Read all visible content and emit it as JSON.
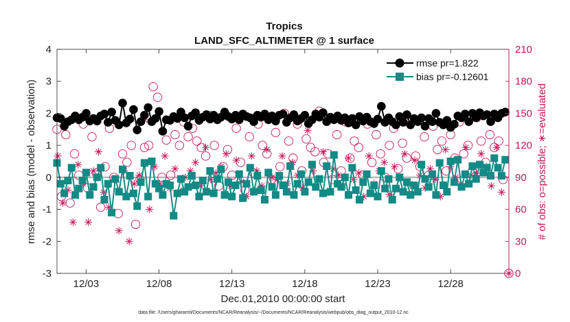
{
  "chart_data": {
    "type": "line",
    "title": "Tropics",
    "subtitle": "LAND_SFC_ALTIMETER @ 1 surface",
    "xlabel": "Dec.01,2010 00:00:00 start",
    "ylabel": "rmse and bias (model - observation)",
    "y2label": "# of obs: o=possible; ∗=evaluated",
    "xlim": [
      1.0,
      32.0
    ],
    "ylim": [
      -3,
      4
    ],
    "y2lim": [
      0,
      210
    ],
    "x_ticks": [
      3,
      8,
      13,
      18,
      23,
      28
    ],
    "x_tick_labels": [
      "12/03",
      "12/08",
      "12/13",
      "12/18",
      "12/23",
      "12/28"
    ],
    "y_ticks": [
      "-3",
      "-2",
      "-1",
      "0",
      "1",
      "2",
      "3",
      "4"
    ],
    "y2_ticks": [
      "0",
      "30",
      "60",
      "90",
      "120",
      "150",
      "180",
      "210"
    ],
    "legend_position": "top-right",
    "zero_line": 0,
    "series": [
      {
        "name": "rmse pr=1.822",
        "color": "#000000",
        "marker": "circle",
        "axis": "left",
        "x": [
          1.0,
          1.25,
          1.5,
          1.75,
          2.0,
          2.25,
          2.5,
          2.75,
          3.0,
          3.25,
          3.5,
          3.75,
          4.0,
          4.25,
          4.5,
          4.75,
          5.0,
          5.25,
          5.5,
          5.75,
          6.0,
          6.25,
          6.5,
          6.75,
          7.0,
          7.25,
          7.5,
          7.75,
          8.0,
          8.25,
          8.5,
          8.75,
          9.0,
          9.25,
          9.5,
          9.75,
          10.0,
          10.25,
          10.5,
          10.75,
          11.0,
          11.25,
          11.5,
          11.75,
          12.0,
          12.25,
          12.5,
          12.75,
          13.0,
          13.25,
          13.5,
          13.75,
          14.0,
          14.25,
          14.5,
          14.75,
          15.0,
          15.25,
          15.5,
          15.75,
          16.0,
          16.25,
          16.5,
          16.75,
          17.0,
          17.25,
          17.5,
          17.75,
          18.0,
          18.25,
          18.5,
          18.75,
          19.0,
          19.25,
          19.5,
          19.75,
          20.0,
          20.25,
          20.5,
          20.75,
          21.0,
          21.25,
          21.5,
          21.75,
          22.0,
          22.25,
          22.5,
          22.75,
          23.0,
          23.25,
          23.5,
          23.75,
          24.0,
          24.25,
          24.5,
          24.75,
          25.0,
          25.25,
          25.5,
          25.75,
          26.0,
          26.25,
          26.5,
          26.75,
          27.0,
          27.25,
          27.5,
          27.75,
          28.0,
          28.25,
          28.5,
          28.75,
          29.0,
          29.25,
          29.5,
          29.75,
          30.0,
          30.25,
          30.5,
          30.75,
          31.0,
          31.25,
          31.5,
          31.75
        ],
        "values": [
          1.86,
          1.84,
          1.6,
          1.74,
          1.8,
          1.92,
          1.8,
          1.88,
          2.0,
          1.76,
          1.84,
          1.76,
          1.92,
          1.98,
          1.72,
          2.04,
          1.78,
          1.64,
          2.32,
          1.7,
          1.82,
          2.12,
          1.48,
          1.74,
          1.94,
          2.18,
          1.74,
          1.84,
          2.06,
          1.44,
          1.8,
          1.78,
          1.9,
          1.84,
          2.04,
          1.86,
          1.6,
          1.92,
          2.02,
          1.78,
          1.88,
          1.96,
          1.82,
          1.94,
          1.8,
          1.88,
          2.04,
          1.9,
          1.82,
          1.94,
          1.8,
          1.98,
          1.9,
          1.86,
          1.74,
          1.94,
          1.88,
          1.98,
          1.8,
          1.92,
          1.76,
          1.94,
          1.98,
          1.72,
          1.86,
          1.96,
          1.76,
          1.84,
          1.94,
          1.68,
          1.8,
          1.98,
          1.88,
          2.02,
          1.74,
          1.88,
          1.8,
          1.92,
          1.78,
          1.86,
          1.7,
          1.84,
          1.64,
          1.9,
          1.76,
          1.88,
          1.74,
          1.68,
          1.82,
          2.22,
          1.72,
          1.86,
          1.74,
          1.64,
          1.9,
          1.72,
          1.96,
          1.64,
          1.84,
          1.74,
          1.86,
          1.6,
          1.84,
          1.74,
          2.0,
          1.72,
          1.64,
          1.78,
          1.56,
          1.66,
          1.92,
          1.86,
          1.98,
          1.74,
          2.0,
          1.86,
          2.02,
          1.92,
          1.96,
          1.74,
          1.98,
          1.86,
          2.0,
          2.04
        ]
      },
      {
        "name": "bias pr=-0.12601",
        "color": "#128a86",
        "marker": "square",
        "axis": "left",
        "x": [
          1.0,
          1.25,
          1.5,
          1.75,
          2.0,
          2.25,
          2.5,
          2.75,
          3.0,
          3.25,
          3.5,
          3.75,
          4.0,
          4.25,
          4.5,
          4.75,
          5.0,
          5.25,
          5.5,
          5.75,
          6.0,
          6.25,
          6.5,
          6.75,
          7.0,
          7.25,
          7.5,
          7.75,
          8.0,
          8.25,
          8.5,
          8.75,
          9.0,
          9.25,
          9.5,
          9.75,
          10.0,
          10.25,
          10.5,
          10.75,
          11.0,
          11.25,
          11.5,
          11.75,
          12.0,
          12.25,
          12.5,
          12.75,
          13.0,
          13.25,
          13.5,
          13.75,
          14.0,
          14.25,
          14.5,
          14.75,
          15.0,
          15.25,
          15.5,
          15.75,
          16.0,
          16.25,
          16.5,
          16.75,
          17.0,
          17.25,
          17.5,
          17.75,
          18.0,
          18.25,
          18.5,
          18.75,
          19.0,
          19.25,
          19.5,
          19.75,
          20.0,
          20.25,
          20.5,
          20.75,
          21.0,
          21.25,
          21.5,
          21.75,
          22.0,
          22.25,
          22.5,
          22.75,
          23.0,
          23.25,
          23.5,
          23.75,
          24.0,
          24.25,
          24.5,
          24.75,
          25.0,
          25.25,
          25.5,
          25.75,
          26.0,
          26.25,
          26.5,
          26.75,
          27.0,
          27.25,
          27.5,
          27.75,
          28.0,
          28.25,
          28.5,
          28.75,
          29.0,
          29.25,
          29.5,
          29.75,
          30.0,
          30.25,
          30.5,
          30.75,
          31.0,
          31.25,
          31.5,
          31.75
        ],
        "values": [
          0.45,
          -0.2,
          -0.5,
          -0.1,
          0.3,
          -0.55,
          -0.35,
          -0.1,
          0.15,
          -0.55,
          -0.3,
          0.0,
          0.3,
          -0.7,
          -0.2,
          -1.1,
          -0.05,
          -0.45,
          0.25,
          -0.6,
          0.05,
          -0.5,
          -0.9,
          -0.15,
          0.45,
          -0.6,
          0.5,
          -0.2,
          -0.35,
          -0.55,
          -0.2,
          -0.25,
          -1.2,
          -0.5,
          -0.05,
          -0.45,
          -0.3,
          0.05,
          -0.25,
          -0.6,
          -0.1,
          -0.45,
          0.2,
          -0.5,
          -0.05,
          0.25,
          -0.55,
          -0.15,
          -0.6,
          -0.25,
          0.1,
          -0.65,
          -0.2,
          0.3,
          -0.45,
          0.05,
          -0.4,
          -0.7,
          0.15,
          -0.3,
          -0.55,
          0.05,
          -0.25,
          -0.45,
          0.35,
          -0.55,
          -0.2,
          0.1,
          -0.45,
          -0.15,
          0.4,
          -0.3,
          -0.05,
          -0.5,
          0.35,
          -0.45,
          0.7,
          -0.2,
          -0.3,
          0.0,
          -0.55,
          0.3,
          -0.4,
          -0.7,
          -0.15,
          0.1,
          -0.5,
          -0.25,
          -0.6,
          0.2,
          -0.35,
          -0.05,
          -0.7,
          -0.35,
          0.0,
          -0.45,
          -0.15,
          -0.55,
          -0.25,
          -0.45,
          0.4,
          -0.05,
          -0.3,
          0.1,
          -0.55,
          0.45,
          -0.25,
          -0.45,
          0.5,
          -0.15,
          0.55,
          -0.3,
          0.1,
          -0.2,
          0.35,
          -0.05,
          0.4,
          0.15,
          0.3,
          0.05,
          0.6,
          0.3,
          0.05,
          0.55
        ]
      },
      {
        "name": "possible",
        "color": "#c8155a",
        "marker": "open-circle",
        "axis": "right",
        "x": [
          1.0,
          1.3,
          1.6,
          1.9,
          2.2,
          2.5,
          2.8,
          3.1,
          3.4,
          3.7,
          4.0,
          4.3,
          4.6,
          4.9,
          5.2,
          5.5,
          5.8,
          6.1,
          6.4,
          6.7,
          7.0,
          7.3,
          7.6,
          7.9,
          8.2,
          8.5,
          8.8,
          9.1,
          9.4,
          9.7,
          10.0,
          10.3,
          10.6,
          10.9,
          11.2,
          11.5,
          11.8,
          12.1,
          12.4,
          12.7,
          13.0,
          13.3,
          13.6,
          13.9,
          14.2,
          14.5,
          14.8,
          15.1,
          15.4,
          15.7,
          16.0,
          16.3,
          16.6,
          16.9,
          17.2,
          17.5,
          17.8,
          18.1,
          18.4,
          18.7,
          19.0,
          19.3,
          19.6,
          19.9,
          20.2,
          20.5,
          20.8,
          21.1,
          21.4,
          21.7,
          22.0,
          22.3,
          22.6,
          22.9,
          23.2,
          23.5,
          23.8,
          24.1,
          24.4,
          24.7,
          25.0,
          25.3,
          25.6,
          25.9,
          26.2,
          26.5,
          26.8,
          27.1,
          27.4,
          27.7,
          28.0,
          28.3,
          28.6,
          28.9,
          29.2,
          29.5,
          29.8,
          30.1,
          30.4,
          30.7,
          31.0,
          31.3,
          31.6
        ],
        "values": [
          135,
          72,
          130,
          66,
          112,
          92,
          140,
          80,
          128,
          94,
          62,
          100,
          136,
          90,
          56,
          112,
          104,
          120,
          46,
          88,
          118,
          120,
          175,
          165,
          90,
          125,
          92,
          130,
          120,
          142,
          128,
          136,
          124,
          118,
          110,
          148,
          120,
          82,
          100,
          116,
          92,
          136,
          104,
          78,
          128,
          94,
          140,
          120,
          112,
          88,
          132,
          100,
          150,
          124,
          108,
          140,
          96,
          126,
          118,
          114,
          152,
          104,
          112,
          88,
          130,
          96,
          142,
          108,
          124,
          118,
          92,
          140,
          104,
          130,
          112,
          90,
          120,
          136,
          98,
          122,
          108,
          142,
          110,
          100,
          128,
          92,
          138,
          116,
          124,
          96,
          130,
          108,
          142,
          112,
          120,
          96,
          146,
          124,
          104,
          130,
          118,
          124,
          88
        ]
      },
      {
        "name": "evaluated",
        "color": "#c8155a",
        "marker": "asterisk",
        "axis": "right",
        "x": [
          1.05,
          1.4,
          1.75,
          2.1,
          2.45,
          2.8,
          3.15,
          3.5,
          3.85,
          4.2,
          4.55,
          4.9,
          5.25,
          5.6,
          5.95,
          6.3,
          6.65,
          7.0,
          7.35,
          7.7,
          8.05,
          8.4,
          8.75,
          9.1,
          9.45,
          9.8,
          10.15,
          10.5,
          10.85,
          11.2,
          11.55,
          11.9,
          12.25,
          12.6,
          12.95,
          13.3,
          13.65,
          14.0,
          14.35,
          14.7,
          15.05,
          15.4,
          15.75,
          16.1,
          16.45,
          16.8,
          17.15,
          17.5,
          17.85,
          18.2,
          18.55,
          18.9,
          19.25,
          19.6,
          19.95,
          20.3,
          20.65,
          21.0,
          21.35,
          21.7,
          22.05,
          22.4,
          22.75,
          23.1,
          23.45,
          23.8,
          24.15,
          24.5,
          24.85,
          25.2,
          25.55,
          25.9,
          26.25,
          26.6,
          26.95,
          27.3,
          27.65,
          28.0,
          28.35,
          28.7,
          29.05,
          29.4,
          29.75,
          30.1,
          30.45,
          30.8,
          31.15,
          31.5
        ],
        "values": [
          110,
          66,
          78,
          48,
          102,
          84,
          48,
          96,
          114,
          76,
          62,
          88,
          40,
          96,
          30,
          84,
          92,
          144,
          60,
          100,
          84,
          110,
          80,
          98,
          76,
          90,
          96,
          104,
          82,
          118,
          88,
          94,
          100,
          112,
          82,
          106,
          86,
          72,
          110,
          96,
          82,
          116,
          90,
          88,
          110,
          84,
          104,
          92,
          80,
          134,
          96,
          88,
          114,
          76,
          98,
          92,
          82,
          108,
          88,
          94,
          72,
          110,
          84,
          96,
          104,
          74,
          100,
          90,
          112,
          84,
          106,
          92,
          80,
          98,
          88,
          72,
          116,
          100,
          90,
          84,
          118,
          92,
          94,
          112,
          100,
          82,
          118,
          76
        ]
      }
    ],
    "footnote": "data file: /Users/gharamti/Documents/NCAR/Reanalysis/~/Documents/NCAR/Reanalysis/webpub/obs_diag_output_2010-12.nc"
  },
  "colors": {
    "rmse": "#000000",
    "bias": "#128a86",
    "obs": "#c8155a",
    "zero_line": "#b8b8b8",
    "axis": "#222222"
  }
}
